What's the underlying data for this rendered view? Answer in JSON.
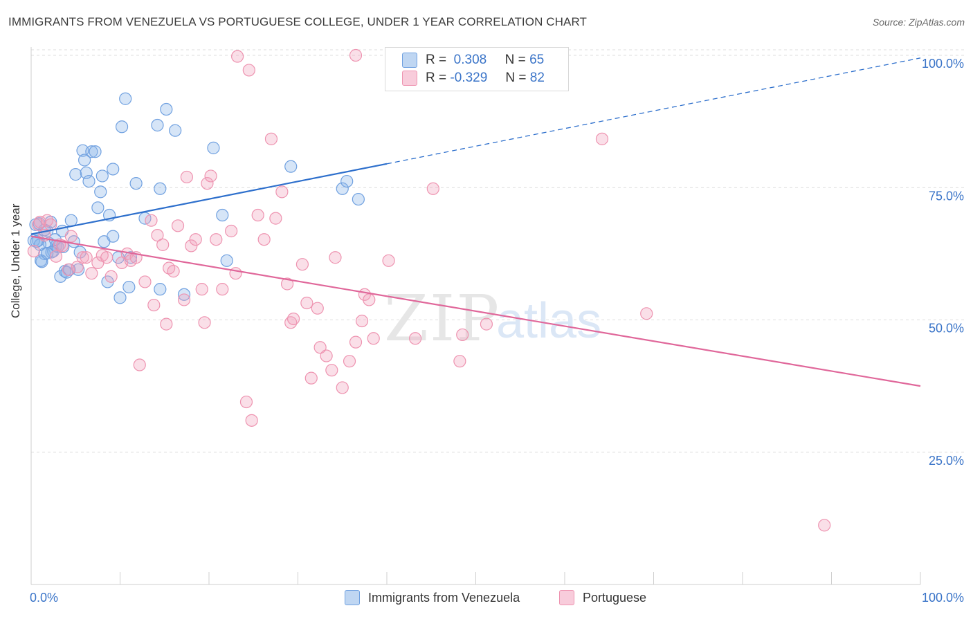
{
  "title": "IMMIGRANTS FROM VENEZUELA VS PORTUGUESE COLLEGE, UNDER 1 YEAR CORRELATION CHART",
  "source": "Source: ZipAtlas.com",
  "watermark": {
    "zip": "ZIP",
    "atlas": "atlas"
  },
  "legend": {
    "r_label": "R =",
    "n_label": "N =",
    "rows": [
      {
        "r": "0.308",
        "n": "65",
        "color": "#8ab4e8"
      },
      {
        "r": "-0.329",
        "n": "82",
        "color": "#f2a3bd"
      }
    ]
  },
  "bottom_legend": [
    {
      "label": "Immigrants from Venezuela",
      "color": "#8ab4e8"
    },
    {
      "label": "Portuguese",
      "color": "#f2a3bd"
    }
  ],
  "chart_data": {
    "type": "scatter",
    "ylabel": "College, Under 1 year",
    "xlim": [
      0,
      100
    ],
    "ylim": [
      0,
      105
    ],
    "x_tick_labels": {
      "left": "0.0%",
      "right": "100.0%"
    },
    "y_ticks": [
      {
        "value": 100,
        "label": "100.0%"
      },
      {
        "value": 75,
        "label": "75.0%"
      },
      {
        "value": 50,
        "label": "50.0%"
      },
      {
        "value": 25,
        "label": "25.0%"
      }
    ],
    "grid": true,
    "series": [
      {
        "name": "Immigrants from Venezuela",
        "color": "#6fa0e0",
        "fill": "rgba(138,180,232,0.35)",
        "trend": {
          "x0": 0,
          "y0": 66.2,
          "x1": 40,
          "y1": 79.5,
          "dash_to_x": 100,
          "dash_to_y": 99.5,
          "color": "#2d6fcc"
        },
        "points": [
          [
            0.5,
            68
          ],
          [
            0.8,
            65
          ],
          [
            1.2,
            61
          ],
          [
            1.5,
            62.5
          ],
          [
            1.8,
            66.8
          ],
          [
            2.0,
            64.5
          ],
          [
            2.2,
            68.5
          ],
          [
            2.5,
            63
          ],
          [
            2.8,
            64
          ],
          [
            3.0,
            63.8
          ],
          [
            3.3,
            58.2
          ],
          [
            3.5,
            66.8
          ],
          [
            3.8,
            59.2
          ],
          [
            4.0,
            59
          ],
          [
            4.5,
            68.8
          ],
          [
            4.8,
            64.8
          ],
          [
            5.0,
            77.5
          ],
          [
            5.3,
            59.5
          ],
          [
            5.8,
            82
          ],
          [
            6.0,
            80.2
          ],
          [
            6.2,
            77.8
          ],
          [
            6.5,
            76.2
          ],
          [
            6.8,
            81.8
          ],
          [
            7.2,
            81.8
          ],
          [
            7.5,
            71.2
          ],
          [
            7.8,
            74.2
          ],
          [
            8.0,
            77.2
          ],
          [
            8.2,
            64.8
          ],
          [
            8.6,
            57.2
          ],
          [
            8.8,
            69.8
          ],
          [
            9.2,
            65.8
          ],
          [
            9.2,
            78.5
          ],
          [
            9.8,
            61.8
          ],
          [
            10.0,
            54.2
          ],
          [
            10.2,
            86.5
          ],
          [
            10.6,
            91.8
          ],
          [
            11.0,
            56.2
          ],
          [
            11.2,
            61.8
          ],
          [
            11.8,
            75.8
          ],
          [
            12.8,
            69.2
          ],
          [
            14.2,
            86.8
          ],
          [
            14.5,
            74.8
          ],
          [
            14.5,
            55.8
          ],
          [
            15.2,
            89.8
          ],
          [
            16.2,
            85.8
          ],
          [
            17.2,
            54.8
          ],
          [
            20.5,
            82.5
          ],
          [
            21.5,
            69.8
          ],
          [
            22.0,
            61.2
          ],
          [
            29.2,
            79.0
          ],
          [
            35.0,
            74.8
          ],
          [
            35.5,
            76.2
          ],
          [
            36.8,
            72.8
          ],
          [
            0.3,
            65
          ],
          [
            1.0,
            64.2
          ],
          [
            1.5,
            67
          ],
          [
            2.3,
            62.8
          ],
          [
            3.6,
            63.8
          ],
          [
            4.3,
            59.5
          ],
          [
            1.1,
            61.2
          ],
          [
            0.6,
            64.8
          ],
          [
            2.7,
            65.2
          ],
          [
            5.5,
            62.8
          ],
          [
            0.9,
            68.2
          ],
          [
            1.8,
            62.6
          ]
        ]
      },
      {
        "name": "Portuguese",
        "color": "#ee93b0",
        "fill": "rgba(242,163,189,0.35)",
        "trend": {
          "x0": 0,
          "y0": 65.8,
          "x1": 100,
          "y1": 37.5,
          "color": "#e0679a"
        },
        "points": [
          [
            0.3,
            63
          ],
          [
            0.8,
            68
          ],
          [
            1.0,
            68.5
          ],
          [
            1.5,
            66
          ],
          [
            1.8,
            68.8
          ],
          [
            2.2,
            68
          ],
          [
            2.8,
            62
          ],
          [
            3.2,
            64.2
          ],
          [
            3.5,
            64
          ],
          [
            4.2,
            59.5
          ],
          [
            4.5,
            65.8
          ],
          [
            5.2,
            60
          ],
          [
            5.8,
            61.8
          ],
          [
            6.2,
            61.8
          ],
          [
            6.8,
            58.8
          ],
          [
            7.5,
            60.8
          ],
          [
            8.0,
            62.2
          ],
          [
            8.5,
            61.8
          ],
          [
            9.0,
            58.2
          ],
          [
            10.2,
            60.8
          ],
          [
            10.8,
            62.5
          ],
          [
            11.2,
            61.2
          ],
          [
            11.8,
            61.8
          ],
          [
            12.2,
            41.5
          ],
          [
            12.8,
            57.2
          ],
          [
            13.5,
            68.8
          ],
          [
            13.8,
            52.8
          ],
          [
            14.2,
            66
          ],
          [
            14.8,
            64.2
          ],
          [
            15.2,
            49.2
          ],
          [
            15.5,
            59.8
          ],
          [
            16.0,
            59.2
          ],
          [
            16.5,
            67.8
          ],
          [
            17.2,
            53.8
          ],
          [
            17.5,
            77
          ],
          [
            18.0,
            64
          ],
          [
            18.5,
            65.2
          ],
          [
            19.2,
            55.8
          ],
          [
            19.5,
            49.5
          ],
          [
            19.8,
            75.8
          ],
          [
            20.2,
            77.2
          ],
          [
            20.8,
            65.2
          ],
          [
            21.5,
            55.8
          ],
          [
            22.5,
            66.8
          ],
          [
            23.0,
            58.8
          ],
          [
            23.2,
            99.8
          ],
          [
            24.2,
            34.5
          ],
          [
            24.5,
            97.2
          ],
          [
            24.8,
            31
          ],
          [
            25.5,
            69.8
          ],
          [
            26.2,
            65.2
          ],
          [
            27.0,
            84.2
          ],
          [
            27.5,
            69.2
          ],
          [
            28.2,
            74.2
          ],
          [
            28.8,
            56.8
          ],
          [
            29.2,
            49.5
          ],
          [
            29.5,
            50.2
          ],
          [
            30.5,
            60.5
          ],
          [
            31.0,
            53.2
          ],
          [
            31.5,
            39
          ],
          [
            32.2,
            52.2
          ],
          [
            32.5,
            44.8
          ],
          [
            33.2,
            43.2
          ],
          [
            33.8,
            40.5
          ],
          [
            34.2,
            61.8
          ],
          [
            35.0,
            37.2
          ],
          [
            35.8,
            42.2
          ],
          [
            36.5,
            45.8
          ],
          [
            37.2,
            49.8
          ],
          [
            37.5,
            54.8
          ],
          [
            38.0,
            53.8
          ],
          [
            38.5,
            46.5
          ],
          [
            40.2,
            61.2
          ],
          [
            43.2,
            46.5
          ],
          [
            45.2,
            74.8
          ],
          [
            48.2,
            42.2
          ],
          [
            48.5,
            47.2
          ],
          [
            51.2,
            49.2
          ],
          [
            64.2,
            84.2
          ],
          [
            69.2,
            51.2
          ],
          [
            89.2,
            11.2
          ],
          [
            36.5,
            100
          ]
        ]
      }
    ]
  }
}
